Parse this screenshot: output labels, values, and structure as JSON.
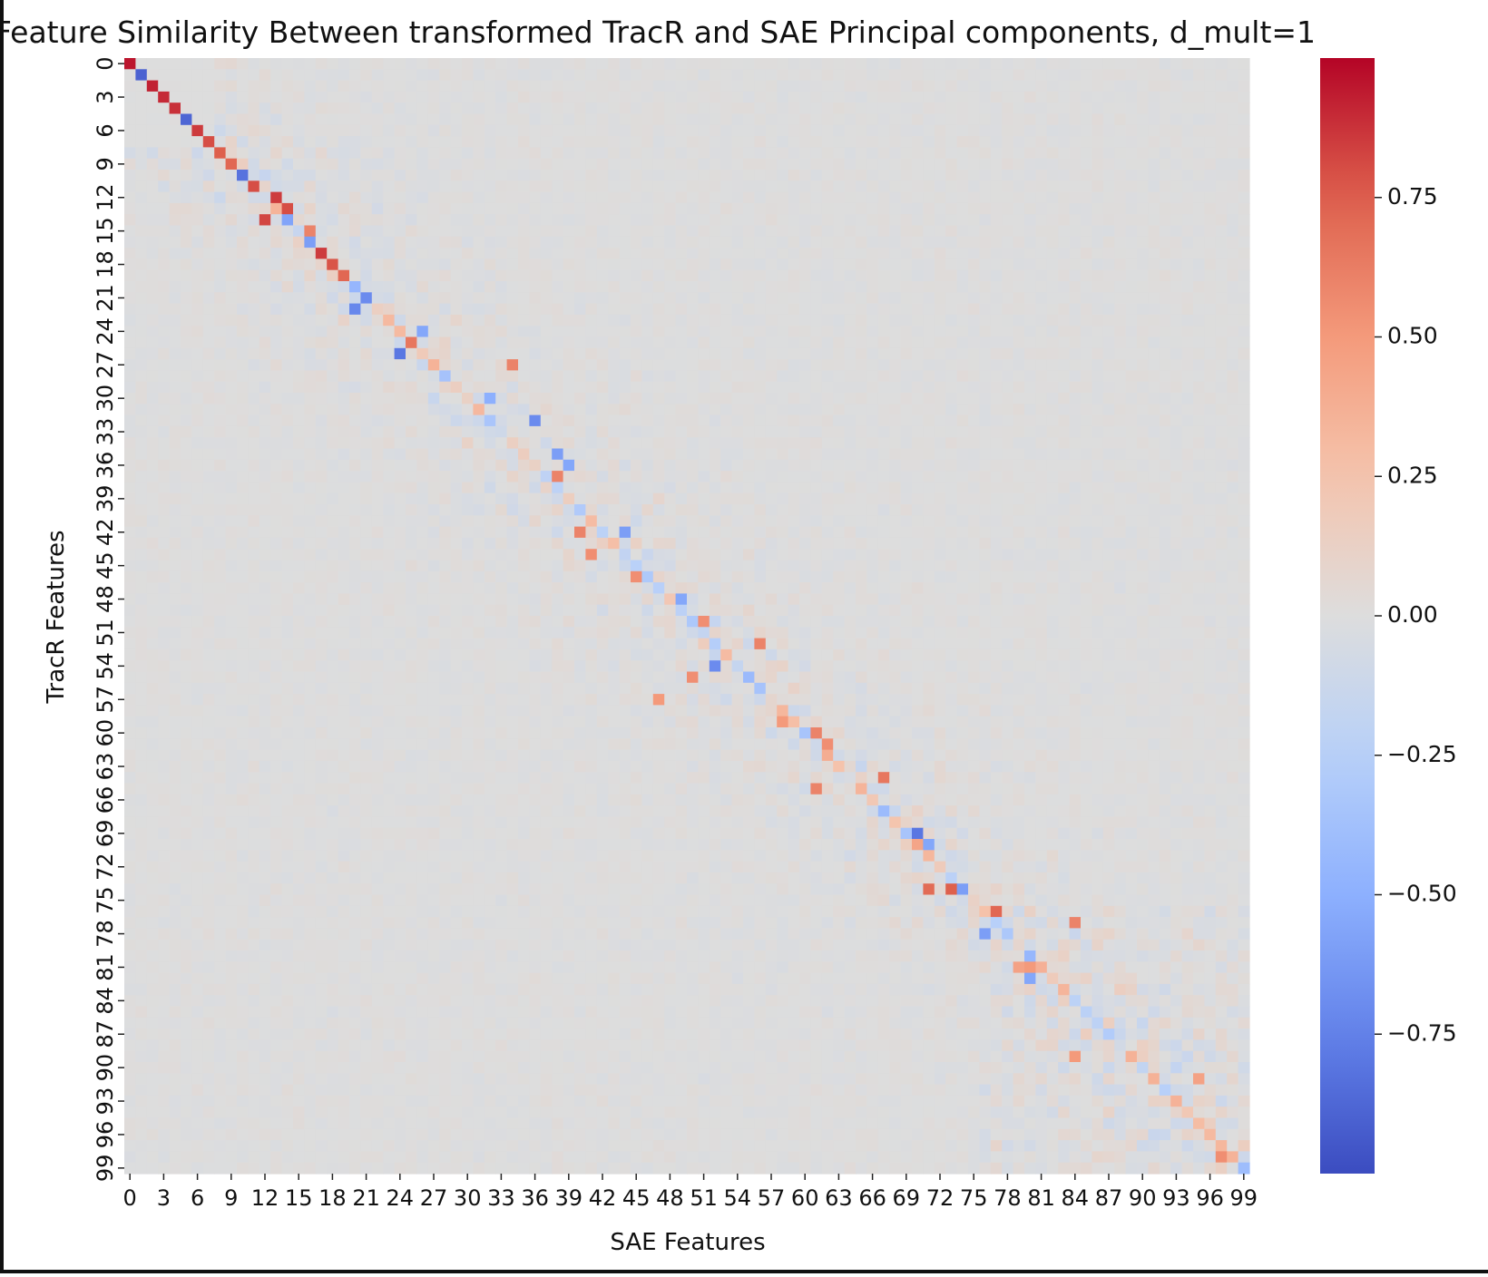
{
  "chart_data": {
    "type": "heatmap",
    "title": "Feature Similarity Between transformed TracR and SAE Principal components, d_mult=1",
    "xlabel": "SAE Features",
    "ylabel": "TracR Features",
    "n_rows": 100,
    "n_cols": 100,
    "x_tick_labels": [
      "0",
      "3",
      "6",
      "9",
      "12",
      "15",
      "18",
      "21",
      "24",
      "27",
      "30",
      "33",
      "36",
      "39",
      "42",
      "45",
      "48",
      "51",
      "54",
      "57",
      "60",
      "63",
      "66",
      "69",
      "72",
      "75",
      "78",
      "81",
      "84",
      "87",
      "90",
      "93",
      "96",
      "99"
    ],
    "y_tick_labels": [
      "0",
      "3",
      "6",
      "9",
      "12",
      "15",
      "18",
      "21",
      "24",
      "27",
      "30",
      "33",
      "36",
      "39",
      "42",
      "45",
      "48",
      "51",
      "54",
      "57",
      "60",
      "63",
      "66",
      "69",
      "72",
      "75",
      "78",
      "81",
      "84",
      "87",
      "90",
      "93",
      "96",
      "99"
    ],
    "colorbar": {
      "colormap": "coolwarm",
      "vmin": -1.0,
      "vmax": 1.0,
      "ticks": [
        0.75,
        0.5,
        0.25,
        0.0,
        -0.25,
        -0.5,
        -0.75
      ],
      "tick_labels": [
        "0.75",
        "0.50",
        "0.25",
        "0.00",
        "−0.25",
        "−0.50",
        "−0.75"
      ]
    },
    "strong_cells": [
      {
        "row": 0,
        "col": 0,
        "value": 0.95
      },
      {
        "row": 1,
        "col": 1,
        "value": -0.9
      },
      {
        "row": 2,
        "col": 2,
        "value": 0.92
      },
      {
        "row": 3,
        "col": 3,
        "value": 0.9
      },
      {
        "row": 4,
        "col": 4,
        "value": 0.88
      },
      {
        "row": 5,
        "col": 5,
        "value": -0.88
      },
      {
        "row": 6,
        "col": 6,
        "value": 0.85
      },
      {
        "row": 7,
        "col": 7,
        "value": 0.8
      },
      {
        "row": 8,
        "col": 8,
        "value": 0.75
      },
      {
        "row": 9,
        "col": 9,
        "value": 0.72
      },
      {
        "row": 10,
        "col": 10,
        "value": -0.82
      },
      {
        "row": 11,
        "col": 11,
        "value": 0.8
      },
      {
        "row": 12,
        "col": 13,
        "value": 0.85
      },
      {
        "row": 13,
        "col": 14,
        "value": 0.8
      },
      {
        "row": 14,
        "col": 12,
        "value": 0.82
      },
      {
        "row": 15,
        "col": 16,
        "value": 0.6
      },
      {
        "row": 16,
        "col": 16,
        "value": -0.6
      },
      {
        "row": 17,
        "col": 17,
        "value": 0.85
      },
      {
        "row": 18,
        "col": 18,
        "value": 0.78
      },
      {
        "row": 19,
        "col": 19,
        "value": 0.72
      },
      {
        "row": 20,
        "col": 20,
        "value": -0.45
      },
      {
        "row": 21,
        "col": 21,
        "value": -0.7
      },
      {
        "row": 22,
        "col": 20,
        "value": -0.72
      },
      {
        "row": 24,
        "col": 26,
        "value": -0.55
      },
      {
        "row": 25,
        "col": 25,
        "value": 0.65
      },
      {
        "row": 26,
        "col": 24,
        "value": -0.8
      },
      {
        "row": 27,
        "col": 34,
        "value": 0.6
      },
      {
        "row": 30,
        "col": 32,
        "value": -0.5
      },
      {
        "row": 32,
        "col": 36,
        "value": -0.7
      },
      {
        "row": 35,
        "col": 38,
        "value": -0.6
      },
      {
        "row": 36,
        "col": 39,
        "value": -0.55
      },
      {
        "row": 37,
        "col": 38,
        "value": 0.6
      },
      {
        "row": 42,
        "col": 40,
        "value": 0.6
      },
      {
        "row": 42,
        "col": 44,
        "value": -0.6
      },
      {
        "row": 44,
        "col": 41,
        "value": 0.55
      },
      {
        "row": 46,
        "col": 45,
        "value": 0.55
      },
      {
        "row": 48,
        "col": 49,
        "value": -0.55
      },
      {
        "row": 50,
        "col": 51,
        "value": 0.55
      },
      {
        "row": 52,
        "col": 56,
        "value": 0.6
      },
      {
        "row": 54,
        "col": 52,
        "value": -0.7
      },
      {
        "row": 55,
        "col": 50,
        "value": 0.55
      },
      {
        "row": 57,
        "col": 47,
        "value": 0.5
      },
      {
        "row": 59,
        "col": 58,
        "value": 0.5
      },
      {
        "row": 60,
        "col": 61,
        "value": 0.6
      },
      {
        "row": 61,
        "col": 62,
        "value": 0.55
      },
      {
        "row": 64,
        "col": 67,
        "value": 0.65
      },
      {
        "row": 65,
        "col": 61,
        "value": 0.6
      },
      {
        "row": 69,
        "col": 70,
        "value": -0.8
      },
      {
        "row": 70,
        "col": 71,
        "value": -0.55
      },
      {
        "row": 74,
        "col": 73,
        "value": 0.75
      },
      {
        "row": 74,
        "col": 74,
        "value": -0.6
      },
      {
        "row": 74,
        "col": 71,
        "value": 0.7
      },
      {
        "row": 76,
        "col": 77,
        "value": 0.72
      },
      {
        "row": 77,
        "col": 84,
        "value": 0.6
      },
      {
        "row": 78,
        "col": 76,
        "value": -0.6
      },
      {
        "row": 81,
        "col": 80,
        "value": 0.5
      },
      {
        "row": 81,
        "col": 79,
        "value": 0.45
      },
      {
        "row": 82,
        "col": 80,
        "value": -0.55
      },
      {
        "row": 89,
        "col": 84,
        "value": 0.5
      },
      {
        "row": 91,
        "col": 95,
        "value": 0.45
      },
      {
        "row": 98,
        "col": 97,
        "value": 0.55
      }
    ]
  }
}
